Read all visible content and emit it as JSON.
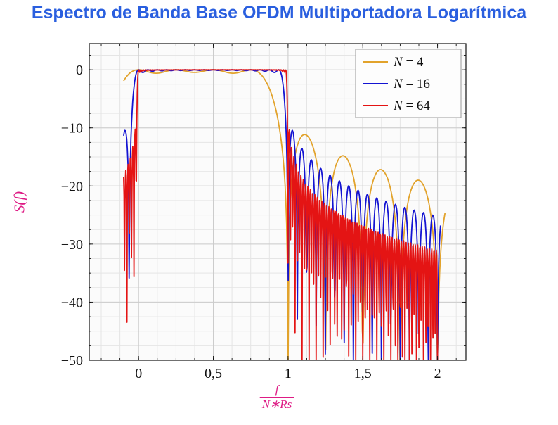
{
  "colors": {
    "title": "#2a5fdf",
    "axis_label": "#de1b85",
    "frame": "#111111",
    "grid_major": "#cccccc",
    "grid_minor": "#e5e5e5",
    "plot_bg": "#fbfbfb",
    "legend_border": "#9a9a9a",
    "legend_bg": "#fdfdfd",
    "tick_label": "#111111"
  },
  "chart_data": {
    "type": "line",
    "title": "Espectro de Banda Base OFDM Multiportadora Logarítmica",
    "ylabel": "S(f)",
    "xlabel": "f/(N∗Rs)",
    "xlabel_numerator": "f",
    "xlabel_denominator": "N∗Rs",
    "xlim": [
      -0.33,
      2.19
    ],
    "ylim": [
      -50,
      4.5
    ],
    "x_major_ticks": [
      {
        "value": 0,
        "label": "0"
      },
      {
        "value": 0.5,
        "label": "0,5"
      },
      {
        "value": 1,
        "label": "1"
      },
      {
        "value": 1.5,
        "label": "1,5"
      },
      {
        "value": 2,
        "label": "2"
      }
    ],
    "y_major_ticks": [
      {
        "value": 0,
        "label": "0"
      },
      {
        "value": -10,
        "label": "−10"
      },
      {
        "value": -20,
        "label": "−20"
      },
      {
        "value": -30,
        "label": "−30"
      },
      {
        "value": -40,
        "label": "−40"
      },
      {
        "value": -50,
        "label": "−50"
      }
    ],
    "x_minor_step": 0.125,
    "y_minor_step": 2.5,
    "grid": "both",
    "legend": {
      "position": "top-right",
      "entries": [
        {
          "label": "N = 4",
          "color": "#e2a32c"
        },
        {
          "label": "N = 16",
          "color": "#1414d2"
        },
        {
          "label": "N = 64",
          "color": "#e41414"
        }
      ]
    },
    "series": [
      {
        "name": "N = 4",
        "N": 4,
        "color": "#e2a32c",
        "x_start": -0.1,
        "x_end": 2.05,
        "samples": 420,
        "formula": "S(u) = 10*log10( sum_{k=0}^{3} sinc^2(4u - k) ), u = f/(N*Rs), flat ~0 dB for 0<u<1, sidelobes decaying to ~-23 dB at u=2"
      },
      {
        "name": "N = 16",
        "N": 16,
        "color": "#1414d2",
        "x_start": -0.1,
        "x_end": 2.02,
        "samples": 520,
        "formula": "S(u) = 10*log10( sum_{k=0}^{15} sinc^2(16u - k) ), flat ~0 dB for 0<u<1, rapid sidelobes from ~-17 dB near u=1.1 to ~-25 dB at u=2"
      },
      {
        "name": "N = 64",
        "N": 64,
        "color": "#e41414",
        "x_start": -0.1,
        "x_end": 2.0,
        "samples": 760,
        "formula": "S(u) = 10*log10( sum_{k=0}^{63} sinc^2(64u - k) ), flat ~0 dB for 0<u<1, dense sidelobes with deep nulls clipped at -50 dB"
      }
    ]
  }
}
